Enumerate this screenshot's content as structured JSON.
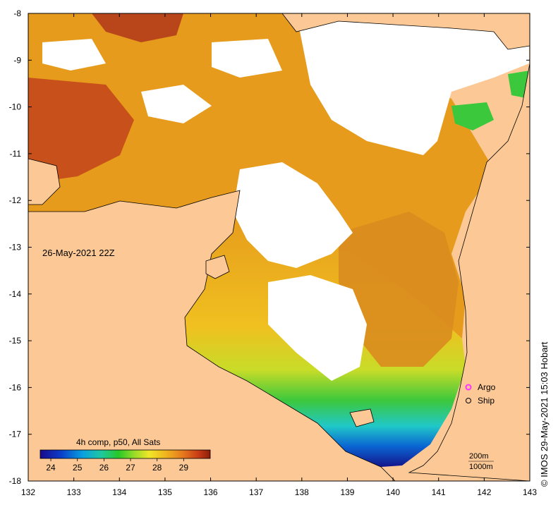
{
  "map": {
    "timestamp": "26-May-2021 22Z",
    "credit": "© IMOS 29-May-2021 15:03 Hobart",
    "colorbar": {
      "title": "4h comp, p50, All Sats",
      "ticks": [
        "24",
        "25",
        "26",
        "27",
        "28",
        "29"
      ],
      "range": [
        23.6,
        30.0
      ]
    },
    "legend": {
      "argo_label": "Argo",
      "ship_label": "Ship",
      "argo_color": "#ff33ff"
    },
    "isobaths": [
      "200m",
      "1000m"
    ],
    "x_ticks": [
      "132",
      "133",
      "134",
      "135",
      "136",
      "137",
      "138",
      "139",
      "140",
      "141",
      "142",
      "143"
    ],
    "y_ticks": [
      "-8",
      "-9",
      "-10",
      "-11",
      "-12",
      "-13",
      "-14",
      "-15",
      "-16",
      "-17",
      "-18"
    ],
    "colors": {
      "land": "#fcc996",
      "cloud": "#ffffff",
      "ocean_warm": "#e69b1c",
      "ocean_hot": "#c84a14",
      "ocean_mid": "#f0c020",
      "ocean_green": "#3cc83c",
      "ocean_cyan": "#20c8c8",
      "ocean_blue": "#1428b4"
    }
  }
}
